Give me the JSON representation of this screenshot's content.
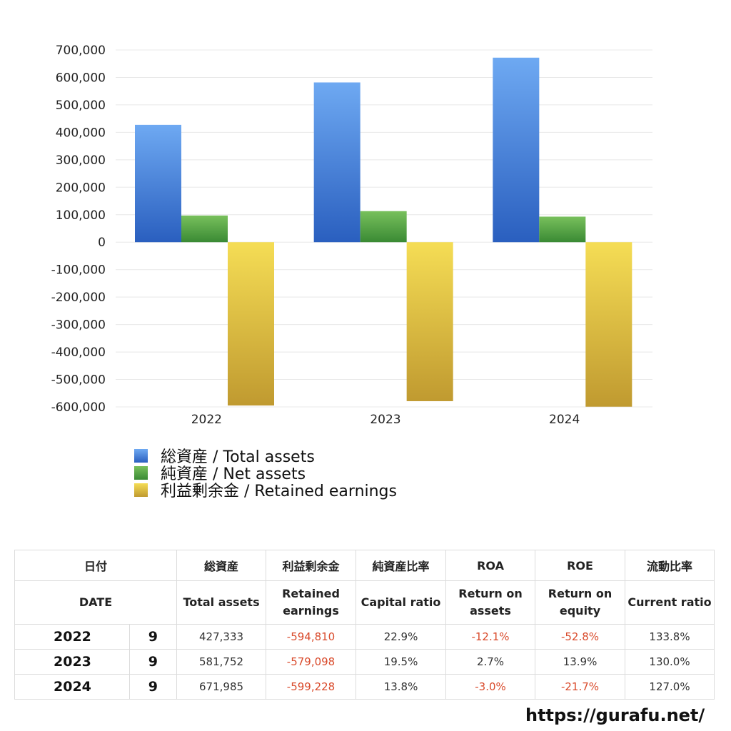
{
  "chart_data": {
    "type": "bar",
    "categories": [
      "2022",
      "2023",
      "2024"
    ],
    "series": [
      {
        "name": "総資産 / Total assets",
        "values": [
          427333,
          581752,
          671985
        ]
      },
      {
        "name": "純資産 / Net assets",
        "values": [
          97000,
          113000,
          93000
        ]
      },
      {
        "name": "利益剰余金 / Retained earnings",
        "values": [
          -594810,
          -579098,
          -599228
        ]
      }
    ],
    "ylim": [
      -600000,
      700000
    ],
    "yticks": [
      700000,
      600000,
      500000,
      400000,
      300000,
      200000,
      100000,
      0,
      -100000,
      -200000,
      -300000,
      -400000,
      -500000,
      -600000
    ],
    "ytick_labels": [
      "700,000",
      "600,000",
      "500,000",
      "400,000",
      "300,000",
      "200,000",
      "100,000",
      "0",
      "-100,000",
      "-200,000",
      "-300,000",
      "-400,000",
      "-500,000",
      "-600,000"
    ],
    "grid": true,
    "legend": "bottom-left",
    "colors": [
      "#3a78d8",
      "#4aa040",
      "#e0c040"
    ]
  },
  "legend": [
    {
      "label": "総資産 / Total assets",
      "color_top": "#6ea9f2",
      "color_bottom": "#2a5fbf"
    },
    {
      "label": "純資産 / Net assets",
      "color_top": "#78c05c",
      "color_bottom": "#3a8a34"
    },
    {
      "label": "利益剰余金 / Retained earnings",
      "color_top": "#f5dd55",
      "color_bottom": "#c09a30"
    }
  ],
  "table": {
    "header_jp": [
      "日付",
      "総資産",
      "利益剰余金",
      "純資産比率",
      "ROA",
      "ROE",
      "流動比率"
    ],
    "header_en": [
      "DATE",
      "Total assets",
      "Retained\nearnings",
      "Capital ratio",
      "Return on\nassets",
      "Return on\nequity",
      "Current ratio"
    ],
    "rows": [
      {
        "year": "2022",
        "month": "9",
        "total_assets": "427,333",
        "retained_earnings": "-594,810",
        "capital_ratio": "22.9%",
        "roa": "-12.1%",
        "roe": "-52.8%",
        "current_ratio": "133.8%"
      },
      {
        "year": "2023",
        "month": "9",
        "total_assets": "581,752",
        "retained_earnings": "-579,098",
        "capital_ratio": "19.5%",
        "roa": "2.7%",
        "roe": "13.9%",
        "current_ratio": "130.0%"
      },
      {
        "year": "2024",
        "month": "9",
        "total_assets": "671,985",
        "retained_earnings": "-599,228",
        "capital_ratio": "13.8%",
        "roa": "-3.0%",
        "roe": "-21.7%",
        "current_ratio": "127.0%"
      }
    ],
    "negative_color": "#d94a2b"
  },
  "footer": {
    "url": "https://gurafu.net/"
  }
}
